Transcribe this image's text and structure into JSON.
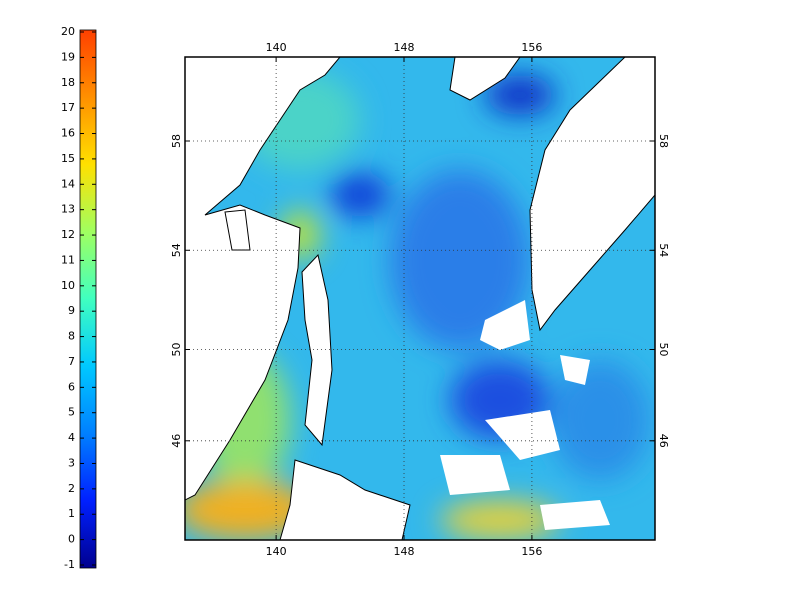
{
  "colorbar": {
    "lim": [
      -1,
      20
    ],
    "ticks": [
      -1,
      0,
      1,
      2,
      3,
      4,
      5,
      6,
      7,
      8,
      9,
      10,
      11,
      12,
      13,
      14,
      15,
      16,
      17,
      18,
      19,
      20
    ],
    "colors": [
      "#00008f",
      "#0020ff",
      "#0080ff",
      "#00c8ff",
      "#40ffc0",
      "#a0ff60",
      "#ffe000",
      "#ff9000",
      "#ff4000"
    ]
  },
  "map": {
    "projection": "mercator",
    "xlim": [
      134.3,
      163.7
    ],
    "ylim": [
      41.3,
      60.8
    ],
    "xticks": [
      140,
      148,
      156
    ],
    "yticks": [
      46,
      50,
      54,
      58
    ],
    "grid": true
  }
}
